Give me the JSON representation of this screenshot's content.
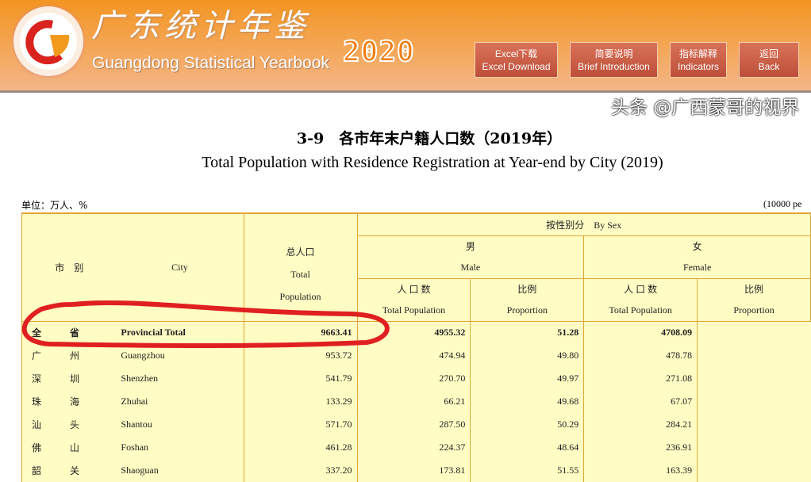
{
  "header": {
    "title_cn": "广东统计年鉴",
    "title_en": "Guangdong Statistical Yearbook",
    "year": "2020",
    "buttons": [
      {
        "cn": "Excel下载",
        "en": "Excel Download"
      },
      {
        "cn": "简要说明",
        "en": "Brief Introduction"
      },
      {
        "cn": "指标解释",
        "en": "Indicators"
      },
      {
        "cn": "返回",
        "en": "Back"
      }
    ]
  },
  "page": {
    "title_cn": "3-9　各市年末户籍人口数（2019年）",
    "title_en": "Total Population with Residence Registration at Year-end by City (2019)",
    "unit_cn": "单位：万人、%",
    "unit_en": "(10000 pe"
  },
  "table": {
    "h": {
      "city_cn": "市　别",
      "city_en": "City",
      "total_cn": "总人口",
      "total_en1": "Total",
      "total_en2": "Population",
      "bysex": "按性别分　By Sex",
      "male_cn": "男",
      "male_en": "Male",
      "female_cn": "女",
      "female_en": "Female",
      "pop_cn": "人 口 数",
      "pop_en": "Total Population",
      "prop_cn": "比例",
      "prop_en": "Proportion"
    },
    "rows": [
      {
        "c1": "全",
        "c2": "省",
        "en": "Provincial Total",
        "total": "9663.41",
        "m": "4955.32",
        "mp": "51.28",
        "f": "4708.09",
        "fp": ""
      },
      {
        "c1": "广",
        "c2": "州",
        "en": "Guangzhou",
        "total": "953.72",
        "m": "474.94",
        "mp": "49.80",
        "f": "478.78",
        "fp": ""
      },
      {
        "c1": "深",
        "c2": "圳",
        "en": "Shenzhen",
        "total": "541.79",
        "m": "270.70",
        "mp": "49.97",
        "f": "271.08",
        "fp": ""
      },
      {
        "c1": "珠",
        "c2": "海",
        "en": "Zhuhai",
        "total": "133.29",
        "m": "66.21",
        "mp": "49.68",
        "f": "67.07",
        "fp": ""
      },
      {
        "c1": "汕",
        "c2": "头",
        "en": "Shantou",
        "total": "571.70",
        "m": "287.50",
        "mp": "50.29",
        "f": "284.21",
        "fp": ""
      },
      {
        "c1": "佛",
        "c2": "山",
        "en": "Foshan",
        "total": "461.28",
        "m": "224.37",
        "mp": "48.64",
        "f": "236.91",
        "fp": ""
      },
      {
        "c1": "韶",
        "c2": "关",
        "en": "Shaoguan",
        "total": "337.20",
        "m": "173.81",
        "mp": "51.55",
        "f": "163.39",
        "fp": ""
      }
    ]
  },
  "watermark": "头条 @广西蒙哥的视界",
  "colors": {
    "header": "#f39522",
    "button": "#c85a44",
    "table_bg": "#fffcc4",
    "border": "#e3a532",
    "annotation": "#e02020"
  }
}
